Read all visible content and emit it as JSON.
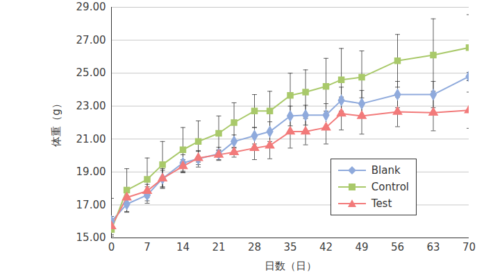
{
  "chart_data": {
    "type": "line",
    "xlabel": "日数（日）",
    "ylabel": "体重（g）",
    "x": [
      0,
      3,
      7,
      10,
      14,
      17,
      21,
      24,
      28,
      31,
      35,
      38,
      42,
      45,
      49,
      56,
      63,
      70
    ],
    "xlim": [
      0,
      70
    ],
    "xticks": [
      0,
      7,
      14,
      21,
      28,
      35,
      42,
      49,
      56,
      63,
      70
    ],
    "ylim": [
      15,
      29
    ],
    "yticks": [
      {
        "value": 15,
        "label": "15.00"
      },
      {
        "value": 17,
        "label": "17.00"
      },
      {
        "value": 19,
        "label": "19.00"
      },
      {
        "value": 21,
        "label": "21.00"
      },
      {
        "value": 23,
        "label": "23.00"
      },
      {
        "value": 25,
        "label": "25.00"
      },
      {
        "value": 27,
        "label": "27.00"
      },
      {
        "value": 29,
        "label": "29.00"
      }
    ],
    "grid": true,
    "legend": "lower right",
    "series": [
      {
        "name": "Blank",
        "color": "#8faadc",
        "marker": "diamond",
        "values": [
          16.0,
          17.05,
          17.6,
          18.6,
          19.55,
          19.8,
          20.1,
          20.85,
          21.2,
          21.45,
          22.4,
          22.45,
          22.45,
          23.35,
          23.15,
          23.7,
          23.7,
          24.8
        ],
        "error": [
          1.4,
          0.5,
          0.5,
          0.6,
          0.5,
          0.5,
          0.4,
          0.4,
          0.5,
          0.6,
          0.6,
          0.6,
          0.7,
          0.8,
          0.8,
          0.8,
          0.8,
          0.25
        ]
      },
      {
        "name": "Control",
        "color": "#a9c96a",
        "marker": "square",
        "values": [
          15.5,
          17.9,
          18.55,
          19.45,
          20.35,
          20.85,
          21.35,
          22.0,
          22.7,
          22.7,
          23.65,
          23.85,
          24.2,
          24.6,
          24.75,
          25.75,
          26.1,
          26.55
        ],
        "error": [
          0.3,
          1.3,
          1.3,
          1.4,
          1.35,
          1.25,
          1.05,
          1.2,
          1.0,
          1.2,
          1.35,
          1.35,
          1.7,
          1.9,
          1.6,
          1.6,
          2.2,
          2.0
        ]
      },
      {
        "name": "Test",
        "color": "#f27a7a",
        "marker": "triangle",
        "values": [
          15.7,
          17.45,
          17.85,
          18.6,
          19.35,
          19.85,
          20.05,
          20.2,
          20.45,
          20.6,
          21.45,
          21.45,
          21.7,
          22.55,
          22.4,
          22.65,
          22.6,
          22.75
        ],
        "error": [
          0.6,
          0.4,
          0.4,
          0.5,
          0.4,
          0.4,
          0.3,
          0.3,
          0.7,
          0.8,
          1.0,
          0.8,
          1.0,
          1.0,
          1.1,
          0.9,
          1.1,
          1.1
        ]
      }
    ]
  }
}
